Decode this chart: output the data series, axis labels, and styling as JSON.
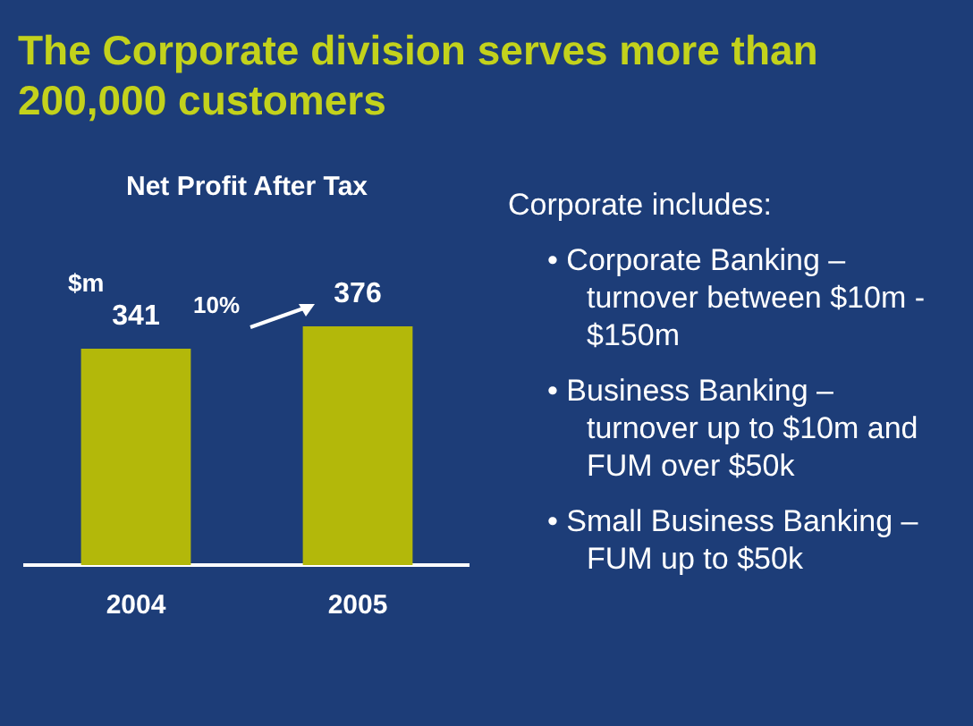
{
  "chart_data": {
    "type": "bar",
    "title": "The Corporate division serves more than 200,000 customers",
    "subtitle": "Net Profit After Tax",
    "ylabel": "$m",
    "categories": [
      "2004",
      "2005"
    ],
    "values": [
      341,
      376
    ],
    "color": "#b3b80a",
    "data_labels": true,
    "grid": false,
    "legend": false,
    "annotations": [
      "10%",
      "Corporate includes:",
      "• Corporate Banking – turnover between $10m - $150m",
      "• Business Banking – turnover up to $10m and FUM over $50k",
      "• Small Business Banking – FUM up to $50k"
    ]
  }
}
